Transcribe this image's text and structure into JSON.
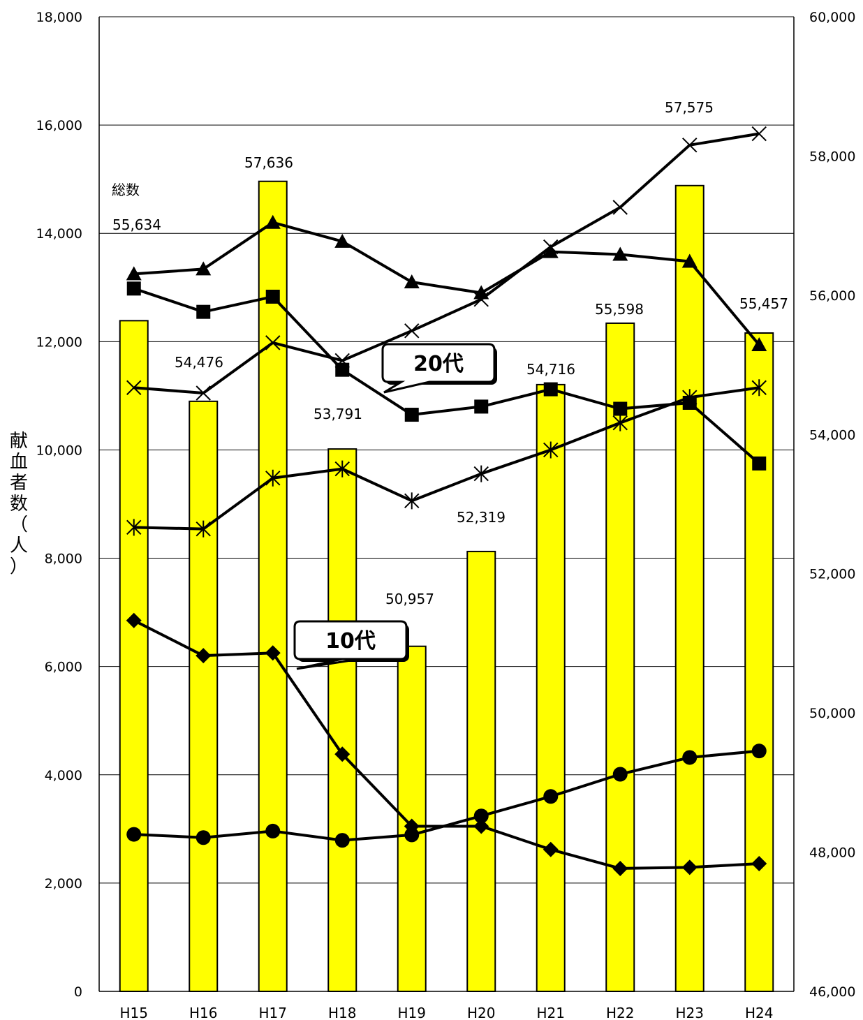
{
  "chart_data": {
    "type": "bar",
    "categories": [
      "H15",
      "H16",
      "H17",
      "H18",
      "H19",
      "H20",
      "H21",
      "H22",
      "H23",
      "H24"
    ],
    "bar_series": {
      "name": "総数",
      "values": [
        55634,
        54476,
        57636,
        53791,
        50957,
        52319,
        54716,
        55598,
        57575,
        55457
      ],
      "axis": "right",
      "color": "#ffff00"
    },
    "line_series": [
      {
        "name": "10代",
        "marker": "diamond",
        "values": [
          6850,
          6200,
          6250,
          4380,
          3050,
          3050,
          2620,
          2270,
          2290,
          2360
        ]
      },
      {
        "name": "20代",
        "marker": "square",
        "values": [
          12980,
          12550,
          12830,
          11480,
          10650,
          10800,
          11120,
          10760,
          10870,
          9750
        ]
      },
      {
        "name": "",
        "marker": "triangle",
        "values": [
          13250,
          13340,
          14200,
          13850,
          13100,
          12900,
          13660,
          13610,
          13480,
          11940
        ]
      },
      {
        "name": "",
        "marker": "cross",
        "values": [
          11150,
          11050,
          11980,
          11650,
          12200,
          12780,
          13750,
          14480,
          15630,
          15840
        ]
      },
      {
        "name": "",
        "marker": "asterisk",
        "values": [
          8570,
          8540,
          9480,
          9650,
          9060,
          9560,
          10000,
          10500,
          10970,
          11150
        ]
      },
      {
        "name": "",
        "marker": "circle",
        "values": [
          2900,
          2840,
          2960,
          2790,
          2890,
          3240,
          3600,
          4010,
          4320,
          4440
        ]
      }
    ],
    "bar_labels": [
      "55,634",
      "54,476",
      "57,636",
      "53,791",
      "50,957",
      "52,319",
      "54,716",
      "55,598",
      "57,575",
      "55,457"
    ],
    "bar_label_legend": "総数",
    "callouts": [
      "20代",
      "10代"
    ],
    "ylabel": "献血者数（人）",
    "ylim_left": [
      0,
      18000
    ],
    "ylim_right": [
      46000,
      60000
    ],
    "yticks_left": [
      "0",
      "2,000",
      "4,000",
      "6,000",
      "8,000",
      "10,000",
      "12,000",
      "14,000",
      "16,000",
      "18,000"
    ],
    "yticks_right": [
      "46,000",
      "48,000",
      "50,000",
      "52,000",
      "54,000",
      "56,000",
      "58,000",
      "60,000"
    ],
    "grid": true
  }
}
